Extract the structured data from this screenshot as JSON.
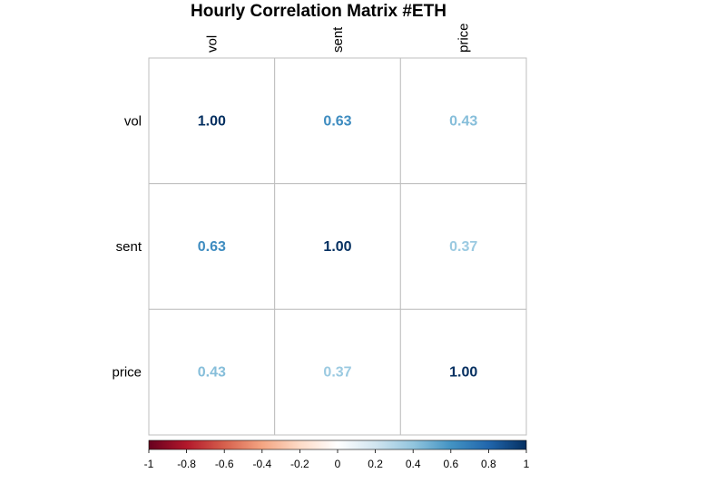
{
  "chart_data": {
    "type": "heatmap",
    "title": "Hourly Correlation Matrix #ETH",
    "variables": [
      "vol",
      "sent",
      "price"
    ],
    "matrix": [
      [
        1.0,
        0.63,
        0.43
      ],
      [
        0.63,
        1.0,
        0.37
      ],
      [
        0.43,
        0.37,
        1.0
      ]
    ],
    "value_labels": [
      [
        "1.00",
        "0.63",
        "0.43"
      ],
      [
        "0.63",
        "1.00",
        "0.37"
      ],
      [
        "0.43",
        "0.37",
        "1.00"
      ]
    ],
    "colorbar": {
      "range": [
        -1,
        1
      ],
      "ticks": [
        "-1",
        "-0.8",
        "-0.6",
        "-0.4",
        "-0.2",
        "0",
        "0.2",
        "0.4",
        "0.6",
        "0.8",
        "1"
      ],
      "placement": "bottom",
      "colors": [
        "#67001f",
        "#b2182b",
        "#d6604d",
        "#f4a582",
        "#fddbc7",
        "#ffffff",
        "#d1e5f0",
        "#92c5de",
        "#4393c3",
        "#2166ac",
        "#053061"
      ]
    },
    "grid": true
  }
}
